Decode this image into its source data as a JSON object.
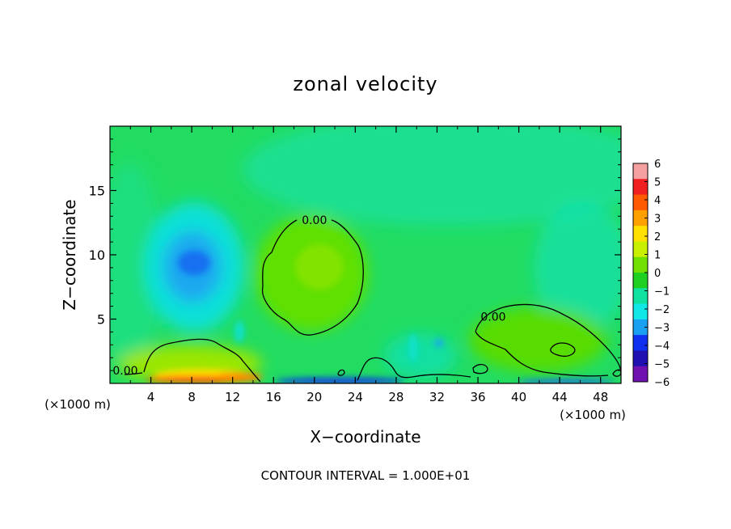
{
  "chart_data": {
    "type": "heatmap",
    "title": "zonal velocity",
    "xlabel": "X−coordinate",
    "ylabel": "Z−coordinate",
    "x_unit_left": "(×1000 m)",
    "x_unit_right": "(×1000 m)",
    "footer": "CONTOUR INTERVAL = 1.000E+01",
    "xlim": [
      0,
      50
    ],
    "ylim": [
      0,
      20
    ],
    "x_ticks": [
      4,
      8,
      12,
      16,
      20,
      24,
      28,
      32,
      36,
      40,
      44,
      48
    ],
    "x_tick_labels": [
      "4",
      "8",
      "12",
      "16",
      "20",
      "24",
      "28",
      "32",
      "36",
      "40",
      "44",
      "48"
    ],
    "y_ticks": [
      5,
      10,
      15
    ],
    "y_tick_labels": [
      "5",
      "10",
      "15"
    ],
    "colorbar": {
      "range": [
        -6,
        6
      ],
      "tick_labels": [
        "6",
        "5",
        "4",
        "3",
        "2",
        "1",
        "0",
        "−1",
        "−2",
        "−3",
        "−4",
        "−5",
        "−6"
      ],
      "colors": [
        "#f4a0a0",
        "#f02020",
        "#ff5a00",
        "#ffa000",
        "#ffe000",
        "#c8f000",
        "#70e000",
        "#20d020",
        "#10e0a0",
        "#10e8e8",
        "#1aa0f0",
        "#1030f0",
        "#2010b0",
        "#7010b0"
      ]
    },
    "background_value": -0.8,
    "features": [
      {
        "name": "negative core",
        "x": 9,
        "z": 9.8,
        "value": -2.6
      },
      {
        "name": "positive lobe",
        "x": 19.5,
        "z": 8,
        "value": 0.8
      },
      {
        "name": "positive region",
        "x": 42,
        "z": 3.2,
        "value": 0.6
      },
      {
        "name": "near-surface maximum",
        "x": 9,
        "z": 0.3,
        "value": 4.5
      },
      {
        "name": "near-surface minimum",
        "x": 24,
        "z": 0.2,
        "value": -5.0
      }
    ],
    "contour_labels": [
      {
        "text": "0.00",
        "x": 20,
        "z": 12.7
      },
      {
        "text": "0.00",
        "x": 37.5,
        "z": 5.2
      },
      {
        "text": "0.00",
        "x": 1.5,
        "z": 1.0
      }
    ]
  }
}
